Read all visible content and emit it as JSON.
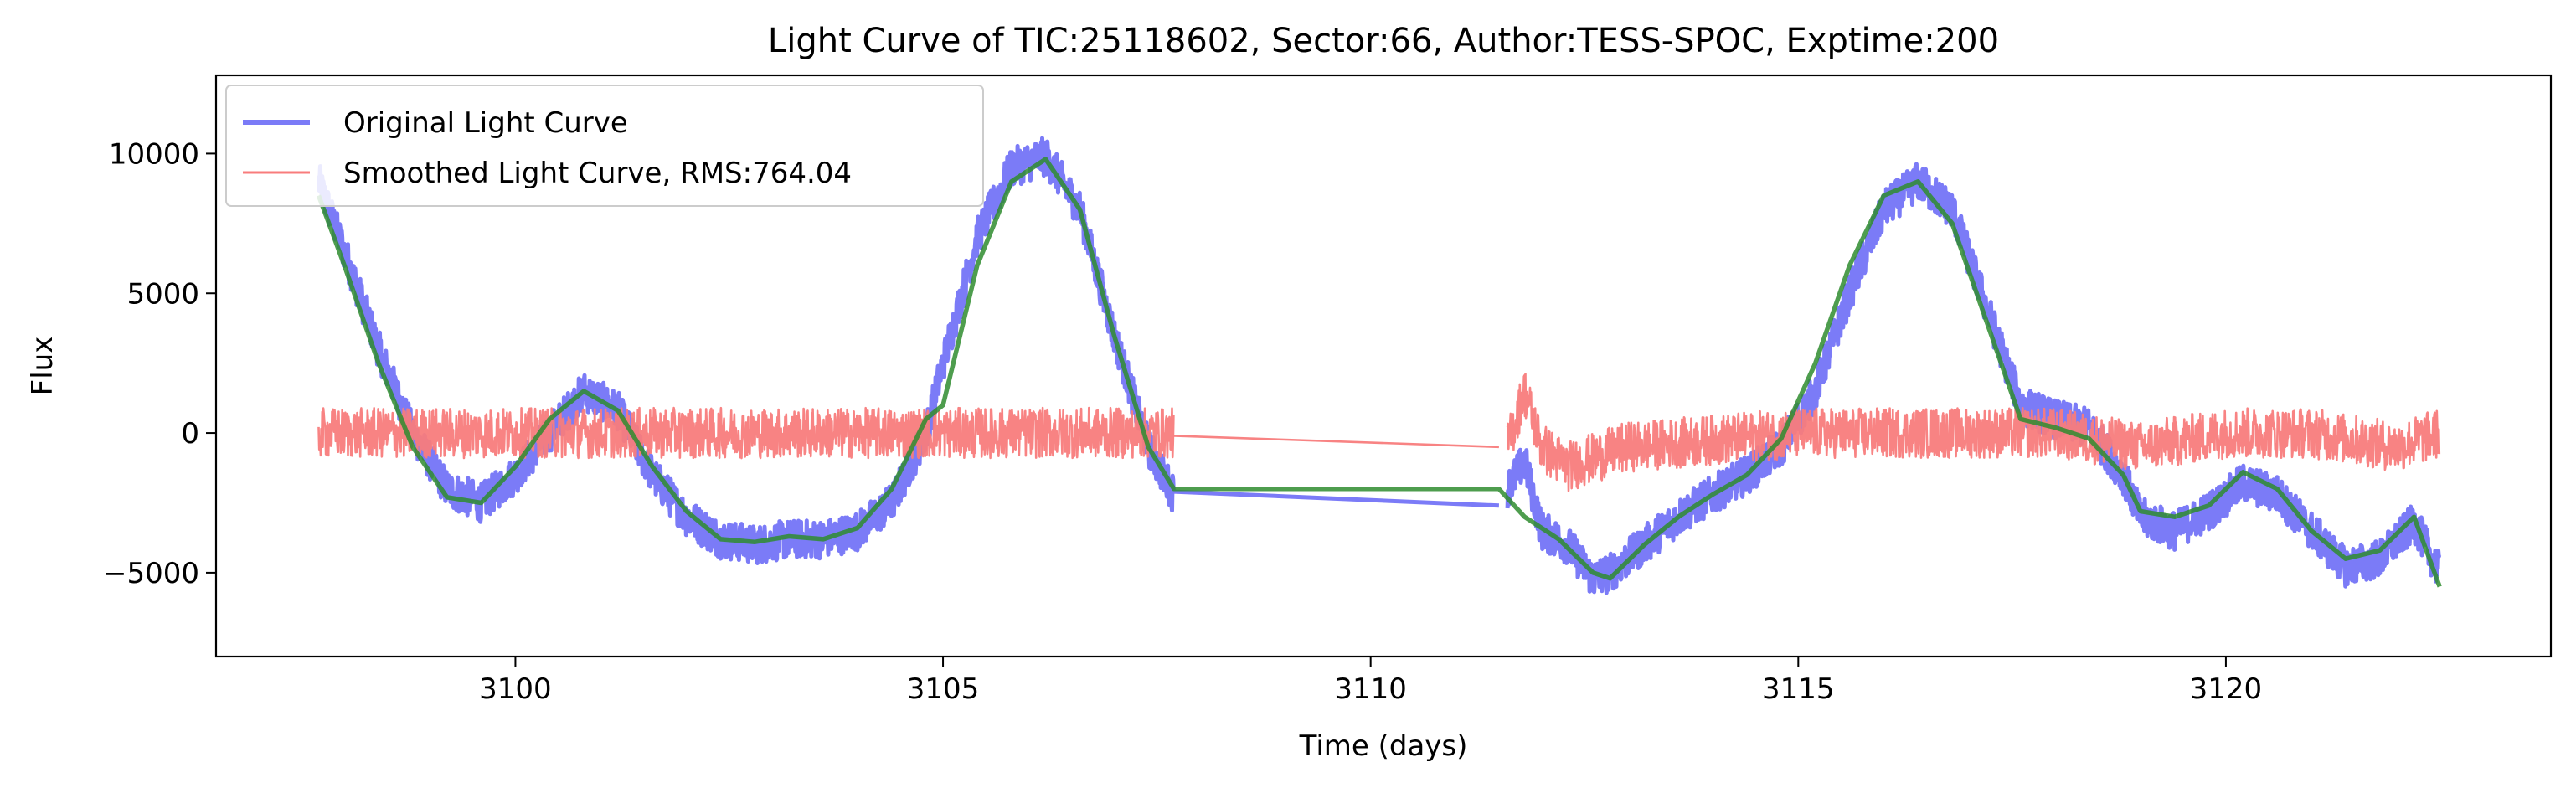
{
  "chart_data": {
    "type": "line",
    "title": "Light Curve of TIC:25118602, Sector:66, Author:TESS-SPOC, Exptime:200",
    "xlabel": "Time (days)",
    "ylabel": "Flux",
    "xlim": [
      3096.5,
      3123.8
    ],
    "ylim": [
      -8000,
      12800
    ],
    "xticks": [
      3100,
      3105,
      3110,
      3115,
      3120
    ],
    "xtick_labels": [
      "3100",
      "3105",
      "3110",
      "3115",
      "3120"
    ],
    "yticks": [
      -5000,
      0,
      5000,
      10000
    ],
    "ytick_labels": [
      "−5000",
      "0",
      "5000",
      "10000"
    ],
    "grid": false,
    "legend_position": "upper-left",
    "series": [
      {
        "name": "Original Light Curve",
        "color": "#7b7bf7",
        "noise": 700,
        "segments": [
          {
            "x": [
              3097.7,
              3098.0,
              3098.4,
              3098.8,
              3099.2,
              3099.6,
              3100.0,
              3100.4,
              3100.8,
              3101.2,
              3101.6,
              3102.0,
              3102.4,
              3102.8,
              3103.2,
              3103.6,
              3104.0,
              3104.4,
              3104.8,
              3105.0,
              3105.4,
              3105.8,
              3106.2,
              3106.6,
              3107.0,
              3107.4,
              3107.7
            ],
            "y": [
              9000,
              6500,
              3000,
              0,
              -2000,
              -2500,
              -1500,
              0,
              1500,
              800,
              -1500,
              -3000,
              -3800,
              -4000,
              -3800,
              -3800,
              -3500,
              -2500,
              0,
              2500,
              7000,
              9500,
              9900,
              8000,
              3500,
              -500,
              -2200
            ]
          },
          {
            "x": [
              3107.7,
              3111.5
            ],
            "y": [
              -2100,
              -2600
            ]
          },
          {
            "x": [
              3111.6,
              3111.8,
              3112.0,
              3112.3,
              3112.6,
              3112.8,
              3113.2,
              3113.6,
              3114.0,
              3114.4,
              3114.8,
              3115.2,
              3115.6,
              3116.0,
              3116.4,
              3116.8,
              3117.2,
              3117.6,
              3118.0,
              3118.4,
              3118.8,
              3119.0,
              3119.4,
              3119.8,
              3120.2,
              3120.6,
              3121.0,
              3121.4,
              3121.8,
              3122.2,
              3122.5
            ],
            "y": [
              -2000,
              -1000,
              -3500,
              -4000,
              -5200,
              -5000,
              -4000,
              -3000,
              -2200,
              -1500,
              -500,
              1500,
              5000,
              8000,
              9000,
              8000,
              4500,
              1000,
              500,
              200,
              -1500,
              -3000,
              -3500,
              -2800,
              -1800,
              -2200,
              -3500,
              -4800,
              -4500,
              -3200,
              -5000
            ]
          }
        ]
      },
      {
        "name": "Smoothed Light Curve, RMS:764.04",
        "color": "#f87c7c",
        "noise": 900,
        "segments": [
          {
            "x": [
              3097.7,
              3100,
              3102,
              3104,
              3105,
              3106,
              3107,
              3107.7
            ],
            "y": [
              0,
              0,
              0,
              0,
              0,
              0,
              0,
              0
            ]
          },
          {
            "x": [
              3107.7,
              3111.5
            ],
            "y": [
              -100,
              -500
            ]
          },
          {
            "x": [
              3111.6,
              3111.8,
              3112.0,
              3112.3,
              3113,
              3115,
              3117,
              3118,
              3119,
              3120,
              3121,
              3122,
              3122.5
            ],
            "y": [
              -500,
              1500,
              -500,
              -1200,
              -500,
              0,
              0,
              0,
              -500,
              0,
              0,
              -500,
              0
            ]
          }
        ]
      },
      {
        "name": "",
        "color": "#2f8c2f",
        "noise": 0,
        "segments": [
          {
            "x": [
              3097.7,
              3098.0,
              3098.4,
              3098.8,
              3099.2,
              3099.6,
              3100.0,
              3100.4,
              3100.8,
              3101.2,
              3101.6,
              3102.0,
              3102.4,
              3102.8,
              3103.2,
              3103.6,
              3104.0,
              3104.4,
              3104.8,
              3105.0,
              3105.4,
              3105.8,
              3106.2,
              3106.6,
              3107.0,
              3107.4,
              3107.7,
              3111.5,
              3111.8,
              3112.2,
              3112.6,
              3112.8,
              3113.2,
              3113.6,
              3114.0,
              3114.4,
              3114.8,
              3115.2,
              3115.6,
              3116.0,
              3116.4,
              3116.8,
              3117.2,
              3117.6,
              3118.0,
              3118.4,
              3118.8,
              3119.0,
              3119.4,
              3119.8,
              3120.2,
              3120.6,
              3121.0,
              3121.4,
              3121.8,
              3122.2,
              3122.5
            ],
            "y": [
              8500,
              6000,
              2500,
              -500,
              -2300,
              -2500,
              -1200,
              500,
              1500,
              800,
              -1200,
              -2800,
              -3800,
              -3900,
              -3700,
              -3800,
              -3400,
              -2000,
              500,
              1000,
              6000,
              9000,
              9800,
              8000,
              3500,
              -500,
              -2000,
              -2000,
              -3000,
              -3800,
              -5000,
              -5200,
              -4000,
              -3000,
              -2200,
              -1500,
              -200,
              2500,
              6000,
              8500,
              9000,
              7500,
              4000,
              500,
              200,
              -200,
              -1500,
              -2800,
              -3000,
              -2600,
              -1400,
              -2000,
              -3500,
              -4500,
              -4200,
              -3000,
              -5500
            ]
          }
        ]
      }
    ]
  }
}
